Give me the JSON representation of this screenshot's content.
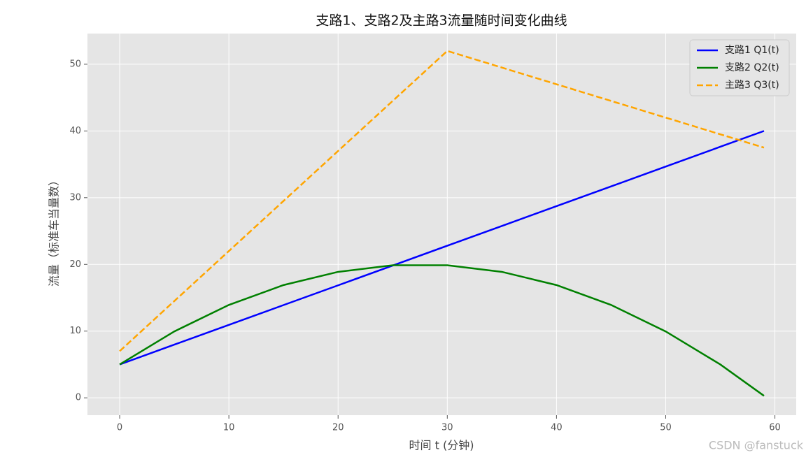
{
  "chart_data": {
    "type": "line",
    "title": "支路1、支路2及主路3流量随时间变化曲线",
    "x_label": "时间 t (分钟)",
    "y_label": "流量（标准车当量数）",
    "x": [
      0,
      5,
      10,
      15,
      20,
      25,
      30,
      35,
      40,
      45,
      50,
      55,
      59
    ],
    "series": [
      {
        "name": "支路1 Q1(t)",
        "color": "#0000ff",
        "linestyle": "solid",
        "values": [
          5,
          7.97,
          10.93,
          13.9,
          16.86,
          19.83,
          22.8,
          25.76,
          28.73,
          31.69,
          34.66,
          37.63,
          40
        ]
      },
      {
        "name": "支路2 Q2(t)",
        "color": "#008000",
        "linestyle": "solid",
        "values": [
          5,
          9.95,
          13.92,
          16.9,
          18.88,
          19.87,
          19.87,
          18.88,
          16.9,
          13.92,
          9.95,
          5.0,
          0.3
        ]
      },
      {
        "name": "主路3 Q3(t)",
        "color": "#ffa500",
        "linestyle": "dashed",
        "values": [
          7,
          14.5,
          22,
          29.5,
          37,
          44.5,
          52,
          49.5,
          47,
          44.5,
          42,
          39.5,
          37.5
        ]
      }
    ],
    "xlim": [
      -2.95,
      61.95
    ],
    "xticks": [
      0,
      10,
      20,
      30,
      40,
      50,
      60
    ],
    "ylim": [
      -2.6,
      54.6
    ],
    "yticks": [
      0,
      10,
      20,
      30,
      40,
      50
    ],
    "grid": true,
    "legend": "upper right",
    "watermark": "CSDN @fanstuck"
  }
}
